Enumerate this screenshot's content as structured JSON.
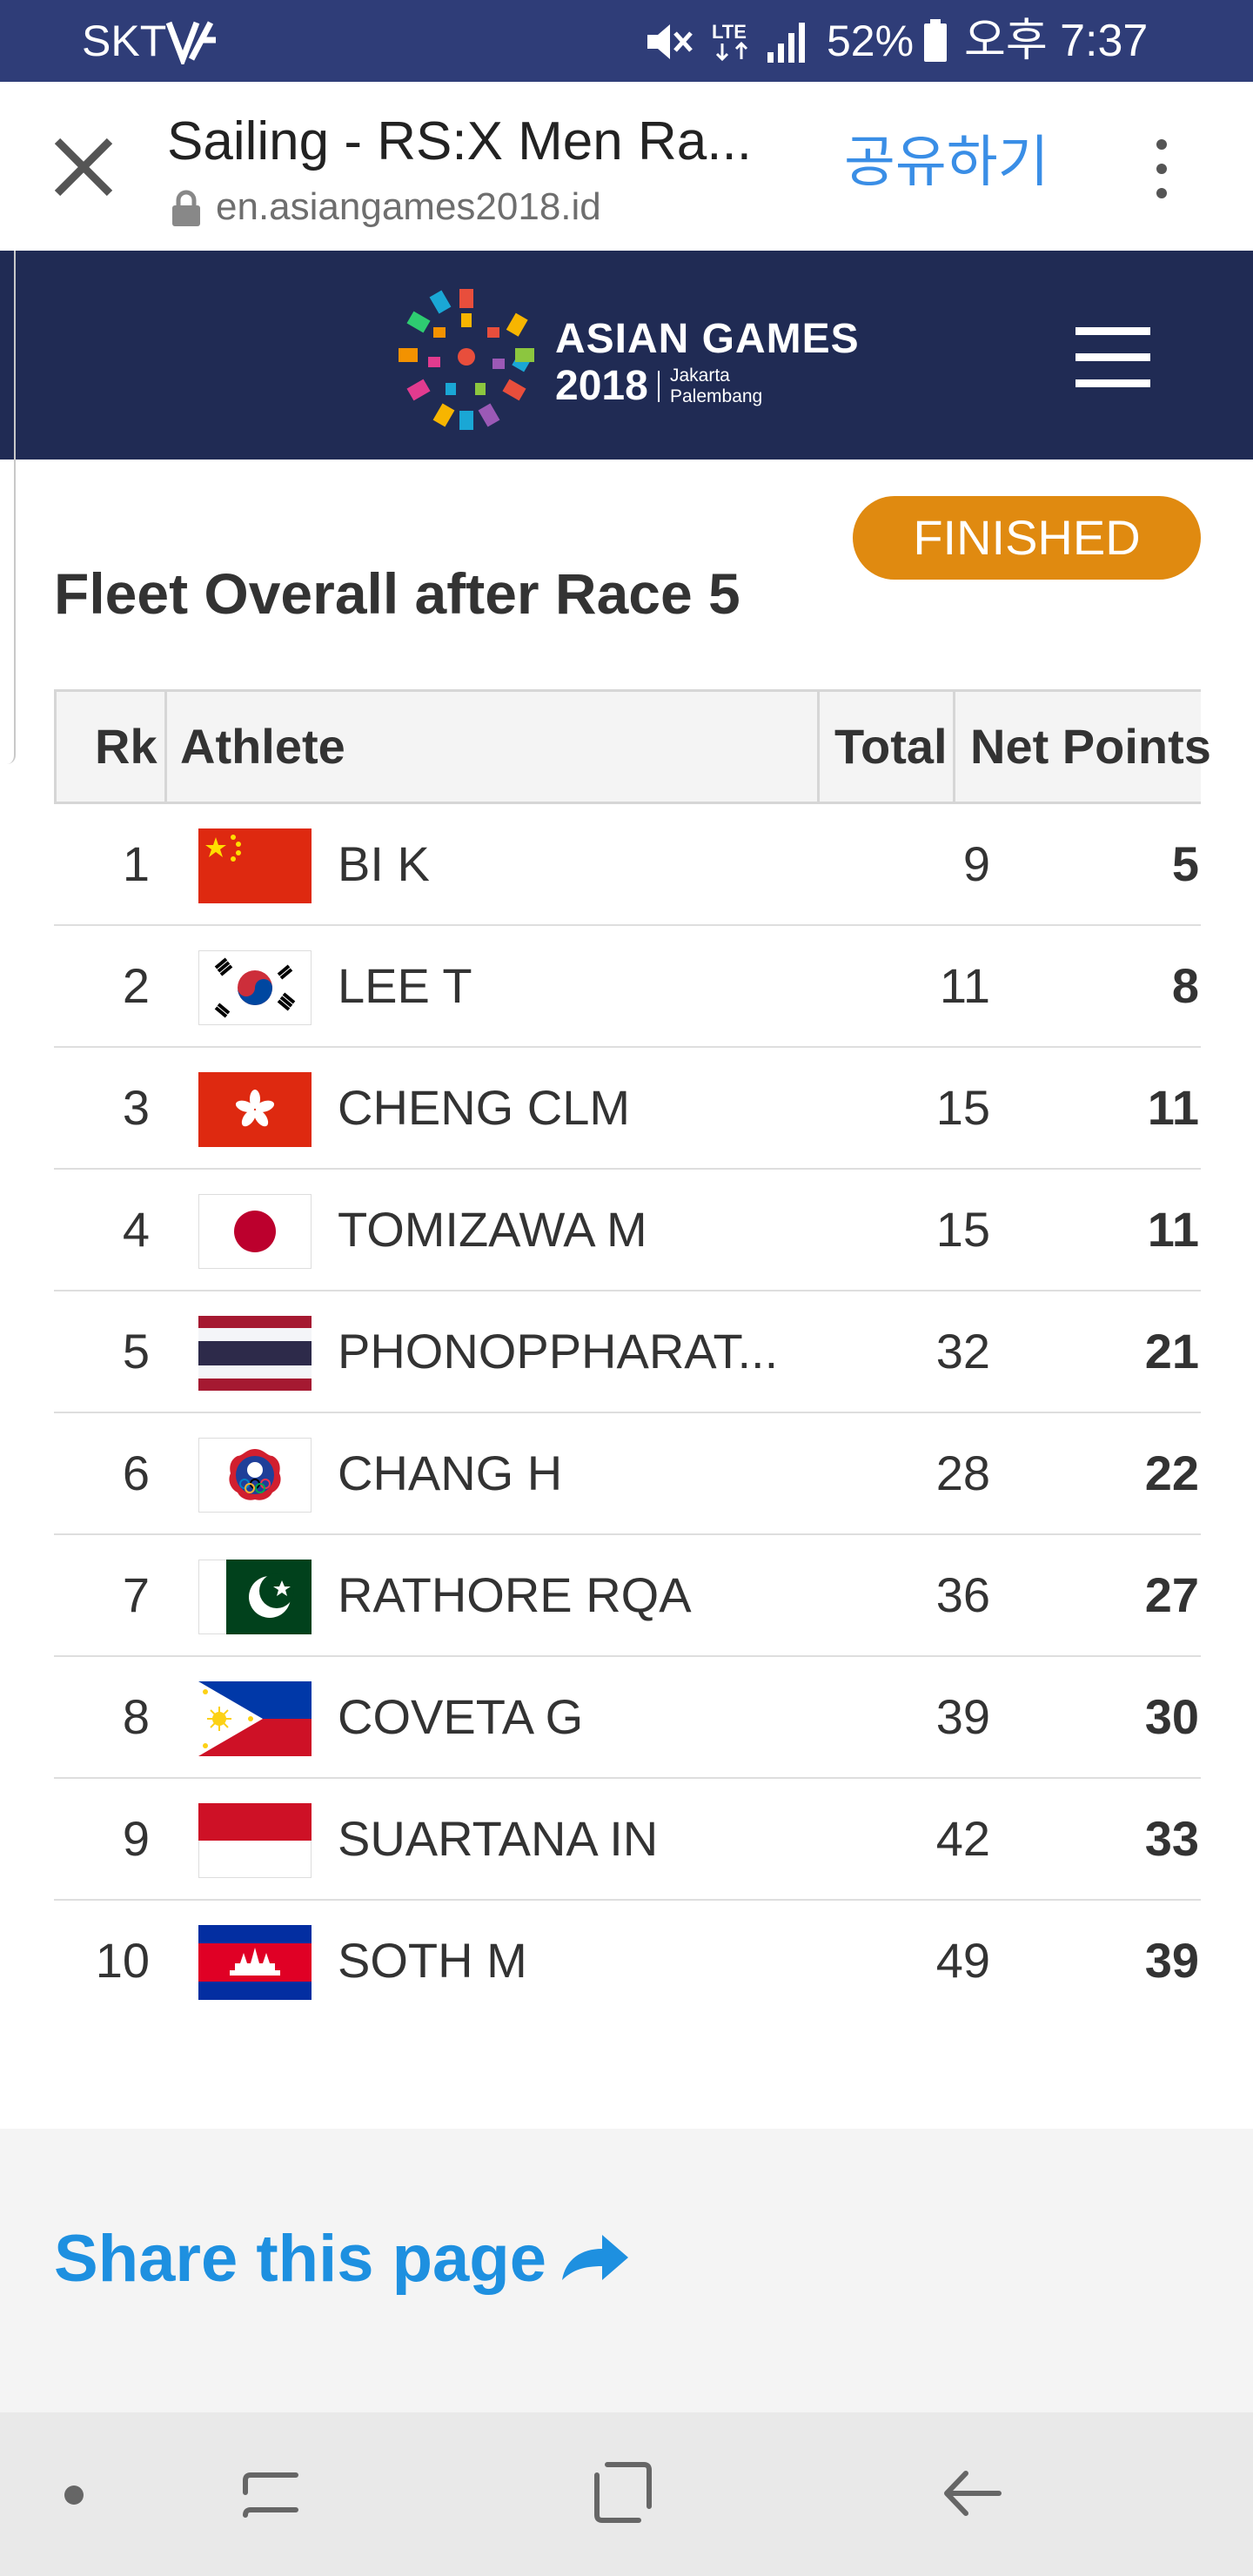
{
  "status_bar": {
    "carrier": "SKT",
    "battery": "52%",
    "time": "오후 7:37",
    "network": "LTE",
    "icons": [
      "carrier-v-icon",
      "mute-icon",
      "lte-icon",
      "signal-icon",
      "battery-icon"
    ]
  },
  "toolbar": {
    "title": "Sailing - RS:X Men Ra...",
    "url": "en.asiangames2018.id",
    "share_label": "공유하기",
    "link_color": "#3a8ee6"
  },
  "header": {
    "brand_name": "ASIAN GAMES",
    "brand_year": "2018",
    "brand_city_1": "Jakarta",
    "brand_city_2": "Palembang",
    "background": "#202b54"
  },
  "content": {
    "status_badge": "FINISHED",
    "badge_color": "#e08a10",
    "title": "Fleet Overall after Race 5"
  },
  "table": {
    "columns": [
      "Rk",
      "Athlete",
      "Total",
      "Net Points"
    ],
    "rows": [
      {
        "rank": "1",
        "athlete": "BI K",
        "total": "9",
        "net": "5",
        "flag": "china-flag-icon"
      },
      {
        "rank": "2",
        "athlete": "LEE T",
        "total": "11",
        "net": "8",
        "flag": "korea-flag-icon"
      },
      {
        "rank": "3",
        "athlete": "CHENG CLM",
        "total": "15",
        "net": "11",
        "flag": "hong-kong-flag-icon"
      },
      {
        "rank": "4",
        "athlete": "TOMIZAWA M",
        "total": "15",
        "net": "11",
        "flag": "japan-flag-icon"
      },
      {
        "rank": "5",
        "athlete": "PHONOPPHARAT...",
        "total": "32",
        "net": "21",
        "flag": "thailand-flag-icon"
      },
      {
        "rank": "6",
        "athlete": "CHANG H",
        "total": "28",
        "net": "22",
        "flag": "chinese-taipei-flag-icon"
      },
      {
        "rank": "7",
        "athlete": "RATHORE RQA",
        "total": "36",
        "net": "27",
        "flag": "pakistan-flag-icon"
      },
      {
        "rank": "8",
        "athlete": "COVETA G",
        "total": "39",
        "net": "30",
        "flag": "philippines-flag-icon"
      },
      {
        "rank": "9",
        "athlete": "SUARTANA IN",
        "total": "42",
        "net": "33",
        "flag": "indonesia-flag-icon"
      },
      {
        "rank": "10",
        "athlete": "SOTH M",
        "total": "49",
        "net": "39",
        "flag": "cambodia-flag-icon"
      }
    ]
  },
  "share": {
    "label": "Share this page",
    "color": "#1e90e0"
  },
  "navbar": {
    "icons": [
      "nav-dot-icon",
      "recent-apps-icon",
      "home-icon",
      "back-icon"
    ]
  }
}
